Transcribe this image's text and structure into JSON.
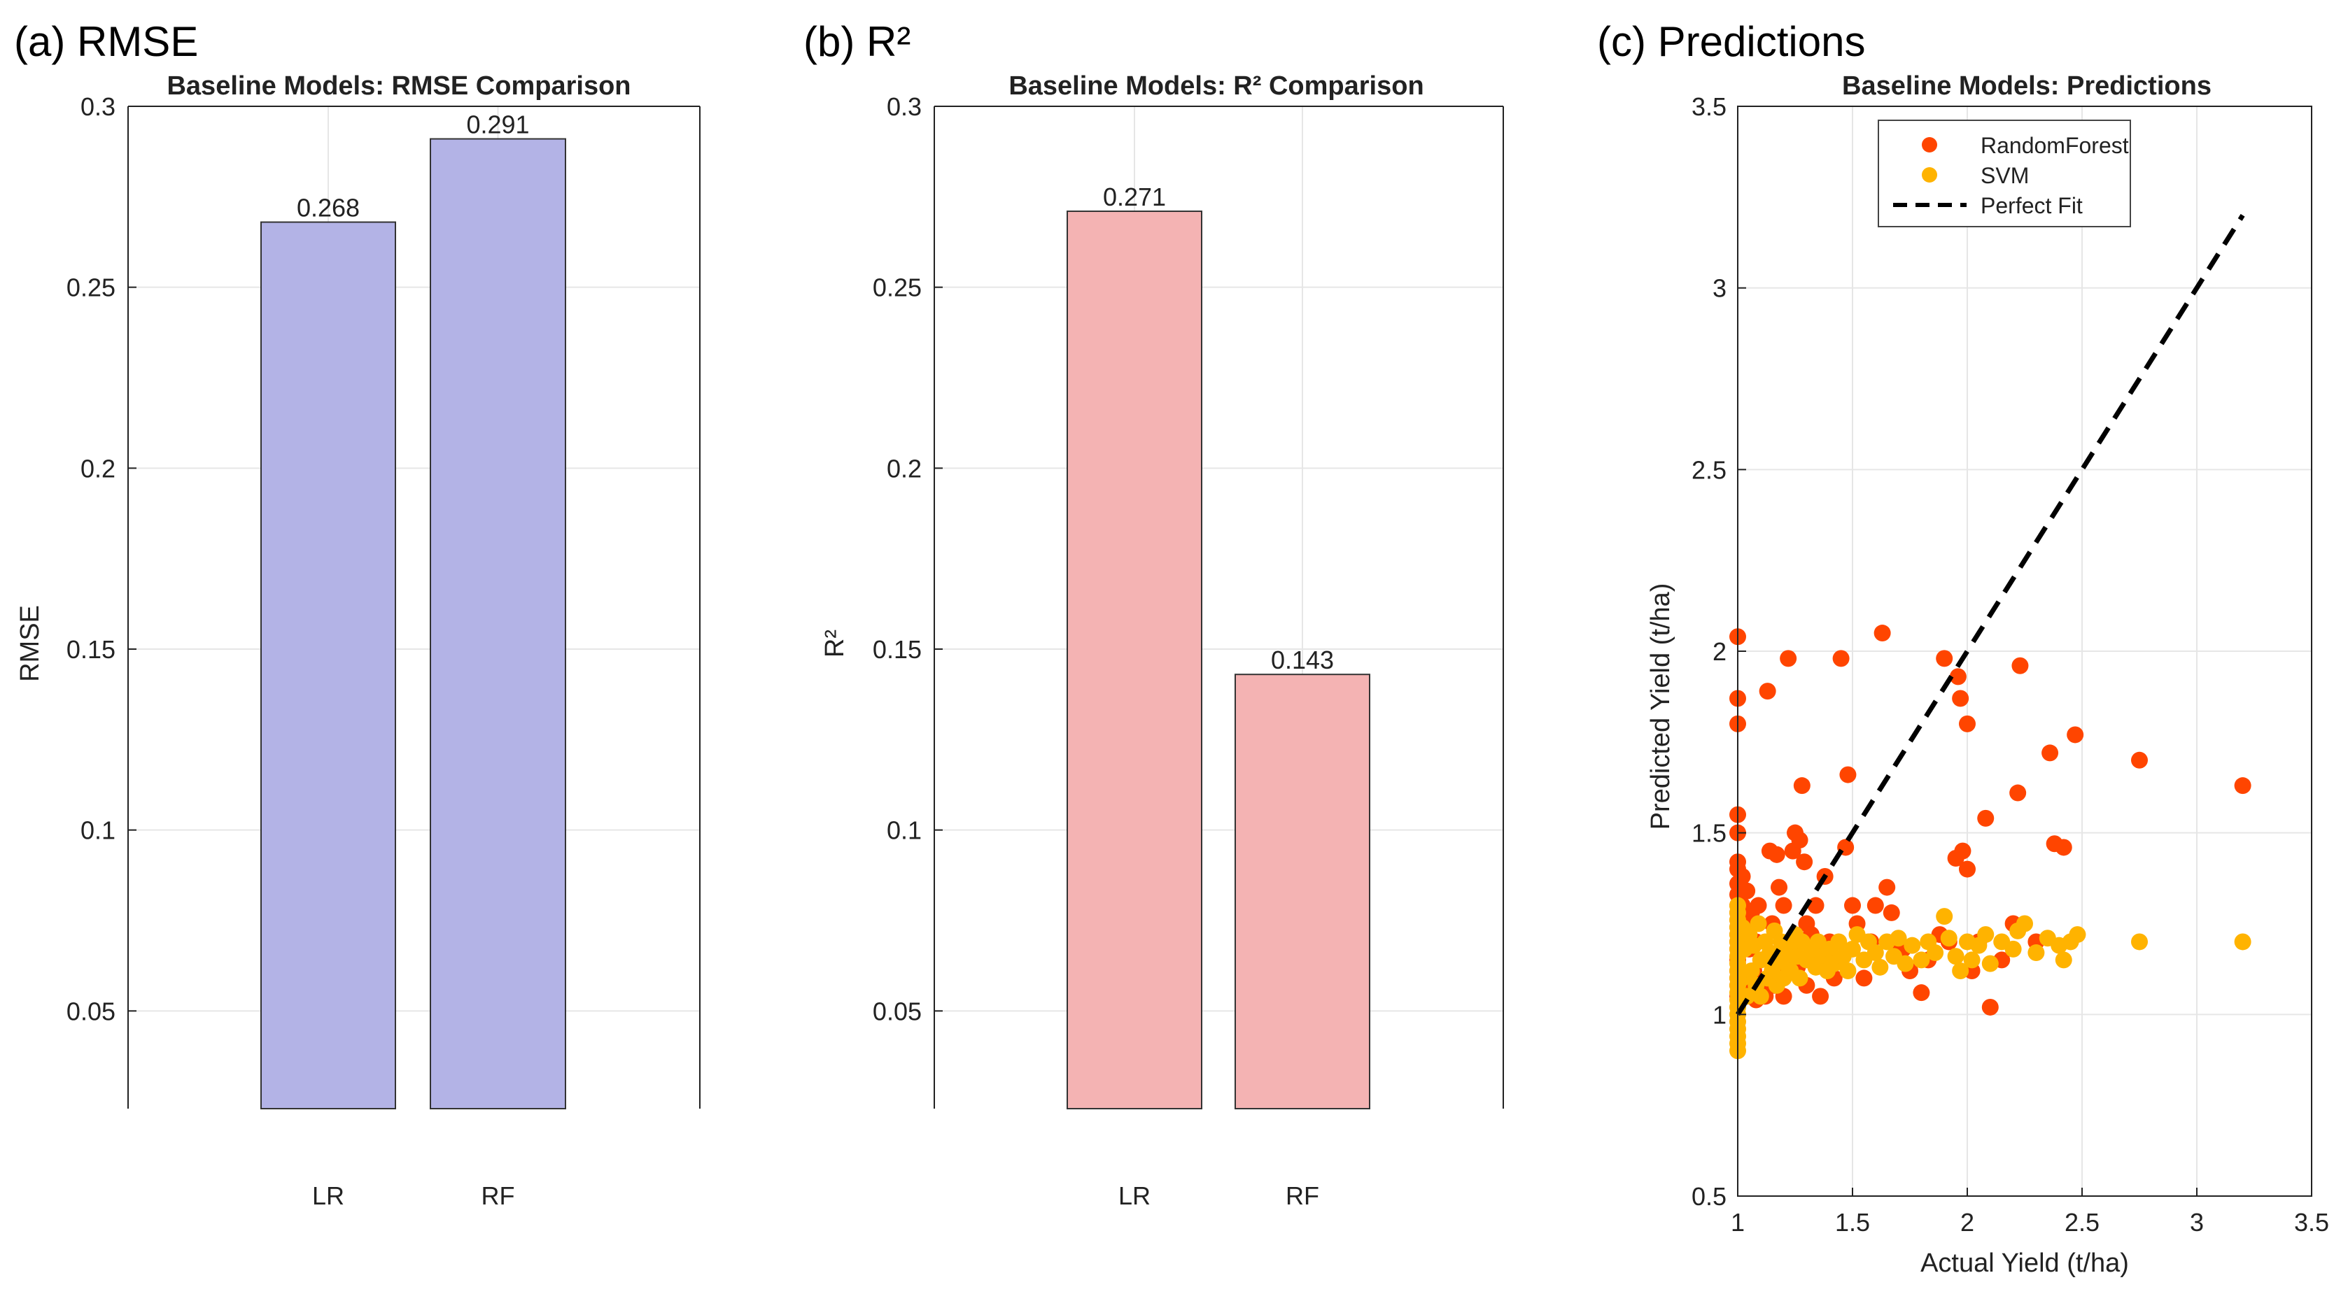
{
  "chart_data": [
    {
      "panel_label": "(a) RMSE",
      "type": "bar",
      "title": "Baseline Models: RMSE Comparison",
      "xlabel": "",
      "ylabel": "RMSE",
      "categories": [
        "LR",
        "RF"
      ],
      "values": [
        0.268,
        0.291
      ],
      "value_labels": [
        "0.268",
        "0.291"
      ],
      "ylim": [
        0.023,
        0.3
      ],
      "yticks": [
        0.05,
        0.1,
        0.15,
        0.2,
        0.25,
        0.3
      ],
      "ytick_labels": [
        "0.05",
        "0.1",
        "0.15",
        "0.2",
        "0.25",
        "0.3"
      ],
      "bar_color": "#b3b3e6",
      "grid": true
    },
    {
      "panel_label": "(b) R²",
      "type": "bar",
      "title": "Baseline Models: R² Comparison",
      "xlabel": "",
      "ylabel": "R²",
      "categories": [
        "LR",
        "RF"
      ],
      "values": [
        0.271,
        0.143
      ],
      "value_labels": [
        "0.271",
        "0.143"
      ],
      "ylim": [
        0.023,
        0.3
      ],
      "yticks": [
        0.05,
        0.1,
        0.15,
        0.2,
        0.25,
        0.3
      ],
      "ytick_labels": [
        "0.05",
        "0.1",
        "0.15",
        "0.2",
        "0.25",
        "0.3"
      ],
      "bar_color": "#f4b3b3",
      "grid": true
    },
    {
      "panel_label": "(c) Predictions",
      "type": "scatter",
      "title": "Baseline Models: Predictions",
      "xlabel": "Actual Yield (t/ha)",
      "ylabel": "Predicted Yield (t/ha)",
      "xlim": [
        1,
        3.5
      ],
      "ylim": [
        0.5,
        3.5
      ],
      "xticks": [
        1,
        1.5,
        2,
        2.5,
        3,
        3.5
      ],
      "xtick_labels": [
        "1",
        "1.5",
        "2",
        "2.5",
        "3",
        "3.5"
      ],
      "yticks": [
        0.5,
        1,
        1.5,
        2,
        2.5,
        3,
        3.5
      ],
      "ytick_labels": [
        "0.5",
        "1",
        "1.5",
        "2",
        "2.5",
        "3",
        "3.5"
      ],
      "legend_position": "top-center",
      "grid": true,
      "series": [
        {
          "name": "RandomForest",
          "color": "#ff4500",
          "points": [
            [
              1.0,
              2.04
            ],
            [
              1.0,
              1.87
            ],
            [
              1.0,
              1.8
            ],
            [
              1.0,
              1.55
            ],
            [
              1.0,
              1.5
            ],
            [
              1.0,
              1.42
            ],
            [
              1.0,
              1.4
            ],
            [
              1.0,
              1.36
            ],
            [
              1.0,
              1.33
            ],
            [
              1.0,
              1.3
            ],
            [
              1.0,
              1.28
            ],
            [
              1.0,
              1.26
            ],
            [
              1.0,
              1.24
            ],
            [
              1.0,
              1.22
            ],
            [
              1.0,
              1.2
            ],
            [
              1.0,
              1.18
            ],
            [
              1.0,
              1.15
            ],
            [
              1.0,
              1.12
            ],
            [
              1.0,
              1.1
            ],
            [
              1.0,
              1.08
            ],
            [
              1.0,
              1.05
            ],
            [
              1.02,
              1.38
            ],
            [
              1.02,
              1.3
            ],
            [
              1.03,
              1.25
            ],
            [
              1.03,
              1.05
            ],
            [
              1.04,
              1.34
            ],
            [
              1.05,
              1.18
            ],
            [
              1.05,
              1.07
            ],
            [
              1.06,
              1.28
            ],
            [
              1.07,
              1.12
            ],
            [
              1.08,
              1.2
            ],
            [
              1.08,
              1.04
            ],
            [
              1.09,
              1.3
            ],
            [
              1.1,
              1.15
            ],
            [
              1.1,
              1.08
            ],
            [
              1.12,
              1.05
            ],
            [
              1.13,
              1.89
            ],
            [
              1.14,
              1.45
            ],
            [
              1.15,
              1.25
            ],
            [
              1.16,
              1.08
            ],
            [
              1.17,
              1.44
            ],
            [
              1.18,
              1.35
            ],
            [
              1.19,
              1.1
            ],
            [
              1.2,
              1.3
            ],
            [
              1.2,
              1.05
            ],
            [
              1.22,
              1.98
            ],
            [
              1.23,
              1.2
            ],
            [
              1.24,
              1.45
            ],
            [
              1.25,
              1.5
            ],
            [
              1.26,
              1.13
            ],
            [
              1.27,
              1.48
            ],
            [
              1.28,
              1.63
            ],
            [
              1.29,
              1.42
            ],
            [
              1.3,
              1.25
            ],
            [
              1.3,
              1.08
            ],
            [
              1.32,
              1.22
            ],
            [
              1.34,
              1.3
            ],
            [
              1.35,
              1.15
            ],
            [
              1.36,
              1.05
            ],
            [
              1.38,
              1.38
            ],
            [
              1.4,
              1.2
            ],
            [
              1.42,
              1.1
            ],
            [
              1.45,
              1.98
            ],
            [
              1.47,
              1.46
            ],
            [
              1.48,
              1.66
            ],
            [
              1.5,
              1.3
            ],
            [
              1.52,
              1.25
            ],
            [
              1.55,
              1.1
            ],
            [
              1.58,
              1.2
            ],
            [
              1.6,
              1.3
            ],
            [
              1.63,
              2.05
            ],
            [
              1.65,
              1.35
            ],
            [
              1.67,
              1.28
            ],
            [
              1.7,
              1.2
            ],
            [
              1.72,
              1.18
            ],
            [
              1.75,
              1.12
            ],
            [
              1.8,
              1.06
            ],
            [
              1.83,
              1.15
            ],
            [
              1.88,
              1.22
            ],
            [
              1.9,
              1.98
            ],
            [
              1.92,
              1.2
            ],
            [
              1.95,
              1.43
            ],
            [
              1.96,
              1.93
            ],
            [
              1.97,
              1.87
            ],
            [
              1.98,
              1.45
            ],
            [
              2.0,
              1.8
            ],
            [
              2.0,
              1.4
            ],
            [
              2.02,
              1.12
            ],
            [
              2.05,
              1.2
            ],
            [
              2.08,
              1.54
            ],
            [
              2.1,
              1.02
            ],
            [
              2.15,
              1.15
            ],
            [
              2.2,
              1.25
            ],
            [
              2.22,
              1.61
            ],
            [
              2.23,
              1.96
            ],
            [
              2.3,
              1.2
            ],
            [
              2.36,
              1.72
            ],
            [
              2.38,
              1.47
            ],
            [
              2.42,
              1.46
            ],
            [
              2.47,
              1.77
            ],
            [
              2.75,
              1.7
            ],
            [
              3.2,
              1.63
            ]
          ]
        },
        {
          "name": "SVM",
          "color": "#ffb300",
          "points": [
            [
              1.0,
              1.3
            ],
            [
              1.0,
              1.28
            ],
            [
              1.0,
              1.26
            ],
            [
              1.0,
              1.24
            ],
            [
              1.0,
              1.22
            ],
            [
              1.0,
              1.2
            ],
            [
              1.0,
              1.18
            ],
            [
              1.0,
              1.16
            ],
            [
              1.0,
              1.14
            ],
            [
              1.0,
              1.12
            ],
            [
              1.0,
              1.1
            ],
            [
              1.0,
              1.08
            ],
            [
              1.0,
              1.06
            ],
            [
              1.0,
              1.04
            ],
            [
              1.0,
              1.02
            ],
            [
              1.0,
              1.0
            ],
            [
              1.0,
              0.98
            ],
            [
              1.0,
              0.96
            ],
            [
              1.0,
              0.94
            ],
            [
              1.0,
              0.92
            ],
            [
              1.0,
              0.9
            ],
            [
              1.02,
              1.24
            ],
            [
              1.02,
              1.1
            ],
            [
              1.03,
              1.18
            ],
            [
              1.04,
              1.05
            ],
            [
              1.05,
              1.22
            ],
            [
              1.06,
              1.12
            ],
            [
              1.07,
              1.19
            ],
            [
              1.08,
              1.08
            ],
            [
              1.09,
              1.25
            ],
            [
              1.1,
              1.15
            ],
            [
              1.1,
              1.05
            ],
            [
              1.12,
              1.2
            ],
            [
              1.13,
              1.1
            ],
            [
              1.14,
              1.17
            ],
            [
              1.15,
              1.12
            ],
            [
              1.16,
              1.23
            ],
            [
              1.17,
              1.08
            ],
            [
              1.18,
              1.16
            ],
            [
              1.19,
              1.2
            ],
            [
              1.2,
              1.1
            ],
            [
              1.21,
              1.14
            ],
            [
              1.22,
              1.18
            ],
            [
              1.23,
              1.12
            ],
            [
              1.25,
              1.22
            ],
            [
              1.26,
              1.16
            ],
            [
              1.27,
              1.1
            ],
            [
              1.28,
              1.2
            ],
            [
              1.3,
              1.15
            ],
            [
              1.32,
              1.18
            ],
            [
              1.34,
              1.13
            ],
            [
              1.35,
              1.2
            ],
            [
              1.37,
              1.16
            ],
            [
              1.39,
              1.12
            ],
            [
              1.4,
              1.18
            ],
            [
              1.42,
              1.14
            ],
            [
              1.44,
              1.2
            ],
            [
              1.46,
              1.16
            ],
            [
              1.48,
              1.12
            ],
            [
              1.5,
              1.18
            ],
            [
              1.52,
              1.22
            ],
            [
              1.55,
              1.15
            ],
            [
              1.57,
              1.2
            ],
            [
              1.6,
              1.17
            ],
            [
              1.62,
              1.13
            ],
            [
              1.65,
              1.2
            ],
            [
              1.68,
              1.16
            ],
            [
              1.7,
              1.21
            ],
            [
              1.73,
              1.14
            ],
            [
              1.76,
              1.19
            ],
            [
              1.8,
              1.15
            ],
            [
              1.83,
              1.2
            ],
            [
              1.86,
              1.17
            ],
            [
              1.9,
              1.27
            ],
            [
              1.92,
              1.21
            ],
            [
              1.95,
              1.16
            ],
            [
              1.97,
              1.12
            ],
            [
              2.0,
              1.2
            ],
            [
              2.02,
              1.15
            ],
            [
              2.05,
              1.19
            ],
            [
              2.08,
              1.22
            ],
            [
              2.1,
              1.14
            ],
            [
              2.15,
              1.2
            ],
            [
              2.2,
              1.18
            ],
            [
              2.22,
              1.23
            ],
            [
              2.25,
              1.25
            ],
            [
              2.3,
              1.17
            ],
            [
              2.35,
              1.21
            ],
            [
              2.4,
              1.19
            ],
            [
              2.42,
              1.15
            ],
            [
              2.45,
              1.2
            ],
            [
              2.48,
              1.22
            ],
            [
              2.75,
              1.2
            ],
            [
              3.2,
              1.2
            ]
          ]
        },
        {
          "name": "Perfect Fit",
          "type": "line",
          "style": "dashed",
          "color": "#000000",
          "points": [
            [
              1.0,
              1.0
            ],
            [
              3.2,
              3.2
            ]
          ]
        }
      ]
    }
  ]
}
